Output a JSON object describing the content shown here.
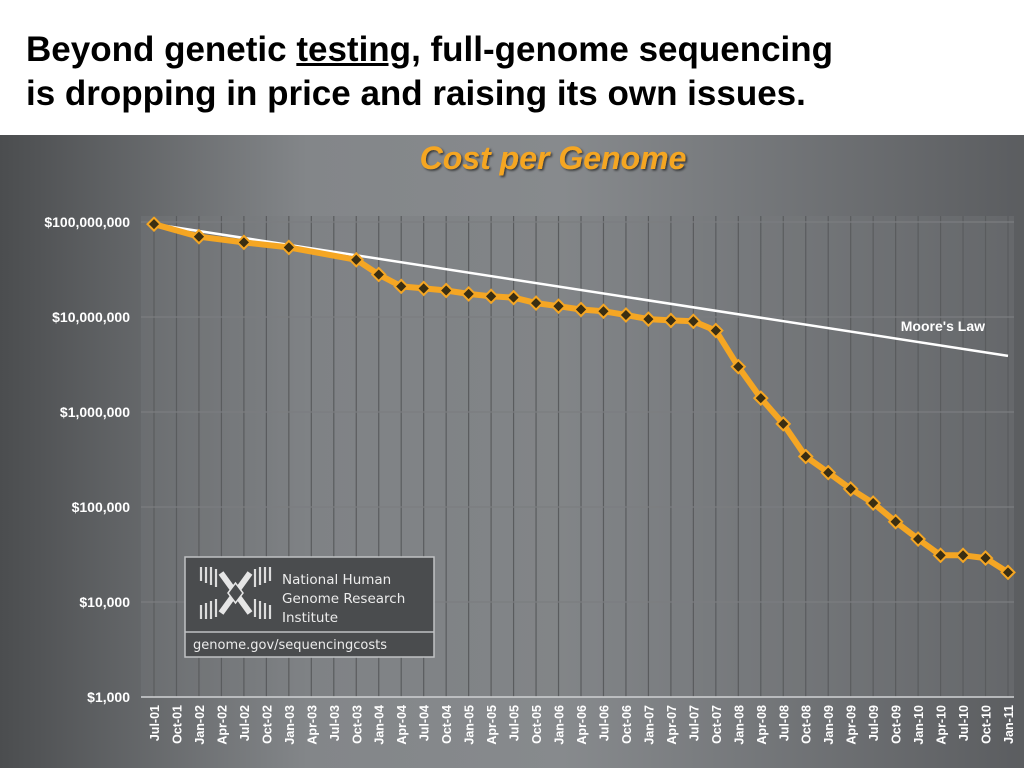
{
  "slide": {
    "title_prefix": "Beyond genetic ",
    "title_link": "testing",
    "title_line1_rest": ",  full-genome sequencing",
    "title_line2": "is dropping in price and raising its own issues."
  },
  "logo": {
    "name_line1": "National Human",
    "name_line2": "Genome Research",
    "name_line3": "Institute",
    "url": "genome.gov/sequencingcosts",
    "icon": "dna-helix-logo-icon"
  },
  "colors": {
    "series_line": "#f5a623",
    "marker": "#3a2e12",
    "moores_line": "#ffffff",
    "title": "#f5a623",
    "gridline": "#5a5c5e"
  },
  "chart_data": {
    "type": "line",
    "title": "Cost per Genome",
    "yscale": "log",
    "ylim": [
      1000,
      100000000
    ],
    "yticks": [
      {
        "value": 100000000,
        "label": "$100,000,000"
      },
      {
        "value": 10000000,
        "label": "$10,000,000"
      },
      {
        "value": 1000000,
        "label": "$1,000,000"
      },
      {
        "value": 100000,
        "label": "$100,000"
      },
      {
        "value": 10000,
        "label": "$10,000"
      },
      {
        "value": 1000,
        "label": "$1,000"
      }
    ],
    "categories": [
      "Jul-01",
      "Oct-01",
      "Jan-02",
      "Apr-02",
      "Jul-02",
      "Oct-02",
      "Jan-03",
      "Apr-03",
      "Jul-03",
      "Oct-03",
      "Jan-04",
      "Apr-04",
      "Jul-04",
      "Oct-04",
      "Jan-05",
      "Apr-05",
      "Jul-05",
      "Oct-05",
      "Jan-06",
      "Apr-06",
      "Jul-06",
      "Oct-06",
      "Jan-07",
      "Apr-07",
      "Jul-07",
      "Oct-07",
      "Jan-08",
      "Apr-08",
      "Jul-08",
      "Oct-08",
      "Jan-09",
      "Apr-09",
      "Jul-09",
      "Oct-09",
      "Jan-10",
      "Apr-10",
      "Jul-10",
      "Oct-10",
      "Jan-11"
    ],
    "grid": true,
    "series": [
      {
        "values": [
          95000000,
          null,
          70000000,
          null,
          61000000,
          null,
          54000000,
          null,
          null,
          40000000,
          28000000,
          21000000,
          20000000,
          19000000,
          17500000,
          16500000,
          16000000,
          14000000,
          13000000,
          12000000,
          11500000,
          10500000,
          9500000,
          9200000,
          9000000,
          7200000,
          3000000,
          1400000,
          750000,
          340000,
          230000,
          155000,
          110000,
          70000,
          46000,
          31000,
          31000,
          29000,
          20500
        ]
      },
      {
        "name": "Moore's Law",
        "endpoints": [
          {
            "category": "Jul-01",
            "value": 95000000
          },
          {
            "category": "Jan-11",
            "value": 3900000
          }
        ]
      }
    ]
  }
}
